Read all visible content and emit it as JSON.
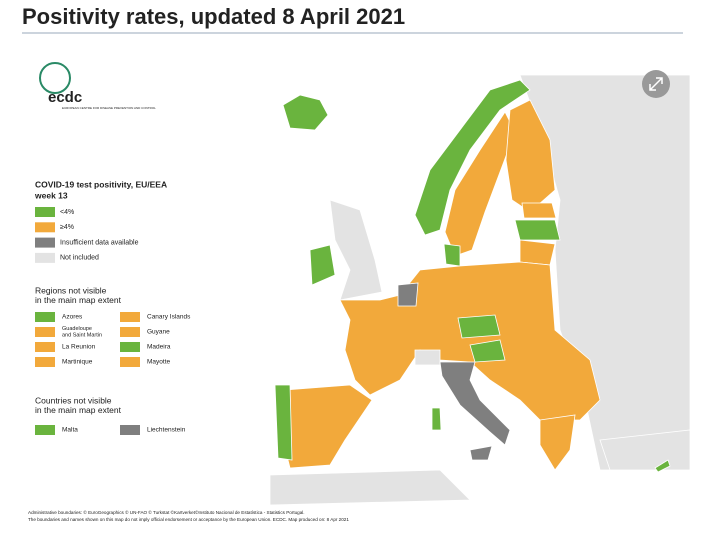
{
  "header": {
    "title": "Positivity rates, updated 8 April 2021"
  },
  "logo": {
    "name": "ecdc",
    "subtitle": "EUROPEAN CENTRE FOR DISEASE PREVENTION AND CONTROL"
  },
  "legend": {
    "title": "COVID-19 test positivity, EU/EEA",
    "subtitle": "week 13",
    "items": [
      {
        "label": "<4%",
        "color": "#6ab43e"
      },
      {
        "label": "≥4%",
        "color": "#f2a93b"
      },
      {
        "label": "Insufficient data available",
        "color": "#7f7f7f"
      },
      {
        "label": "Not included",
        "color": "#e3e3e3"
      }
    ]
  },
  "regions": {
    "title": [
      "Regions not visible",
      "in the main map extent"
    ],
    "items": [
      {
        "label": "Azores",
        "color": "#6ab43e"
      },
      {
        "label": "Canary Islands",
        "color": "#f2a93b"
      },
      {
        "label": [
          "Guadeloupe",
          "and Saint Martin"
        ],
        "color": "#f2a93b"
      },
      {
        "label": "Guyane",
        "color": "#f2a93b"
      },
      {
        "label": "La Reunion",
        "color": "#f2a93b"
      },
      {
        "label": "Madeira",
        "color": "#6ab43e"
      },
      {
        "label": "Martinique",
        "color": "#f2a93b"
      },
      {
        "label": "Mayotte",
        "color": "#f2a93b"
      }
    ]
  },
  "countries": {
    "title": [
      "Countries not visible",
      "in the main map extent"
    ],
    "items": [
      {
        "label": "Malta",
        "color": "#6ab43e"
      },
      {
        "label": "Liechtenstein",
        "color": "#7f7f7f"
      }
    ]
  },
  "footer": {
    "lines": [
      "Administrative boundaries: © EuroGeographics © UN-FAO © Turkstat ©Kartverket©Instituto Nacional de Estatística - Statistics Portugal.",
      "The boundaries and names shown on this map do not imply official endorsement or acceptance by the European Union. ECDC. Map produced on: 8 Apr 2021"
    ]
  }
}
